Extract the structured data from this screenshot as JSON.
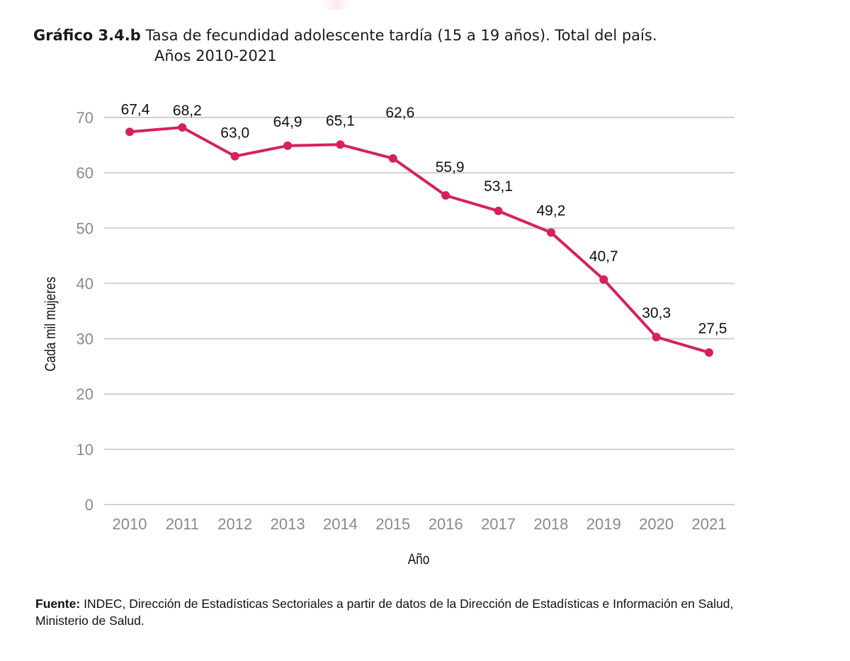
{
  "header": {
    "figure_label": "Gráfico 3.4.b",
    "title_line1": "Tasa de fecundidad adolescente tardía (15 a 19 años). Total del país.",
    "title_line2": "Años 2010-2021"
  },
  "source": {
    "label": "Fuente:",
    "text": "INDEC, Dirección de Estadísticas Sectoriales a partir de datos de la Dirección de Estadísticas e Información en Salud, Ministerio de Salud."
  },
  "colors": {
    "series": "#d6215f",
    "grid": "#d0d0d0",
    "tick_text": "#8a8a8a"
  },
  "chart_data": {
    "type": "line",
    "title": "Tasa de fecundidad adolescente tardía (15 a 19 años). Total del país. Años 2010-2021",
    "xlabel": "Año",
    "ylabel": "Cada mil mujeres",
    "categories": [
      "2010",
      "2011",
      "2012",
      "2013",
      "2014",
      "2015",
      "2016",
      "2017",
      "2018",
      "2019",
      "2020",
      "2021"
    ],
    "series": [
      {
        "name": "Tasa de fecundidad adolescente tardía",
        "values": [
          67.4,
          68.2,
          63.0,
          64.9,
          65.1,
          62.6,
          55.9,
          53.1,
          49.2,
          40.7,
          30.3,
          27.5
        ],
        "labels": [
          "67,4",
          "68,2",
          "63,0",
          "64,9",
          "65,1",
          "62,6",
          "55,9",
          "53,1",
          "49,2",
          "40,7",
          "30,3",
          "27,5"
        ]
      }
    ],
    "ylim": [
      0,
      70
    ],
    "yticks": [
      0,
      10,
      20,
      30,
      40,
      50,
      60,
      70
    ],
    "grid": true,
    "legend": "none"
  }
}
